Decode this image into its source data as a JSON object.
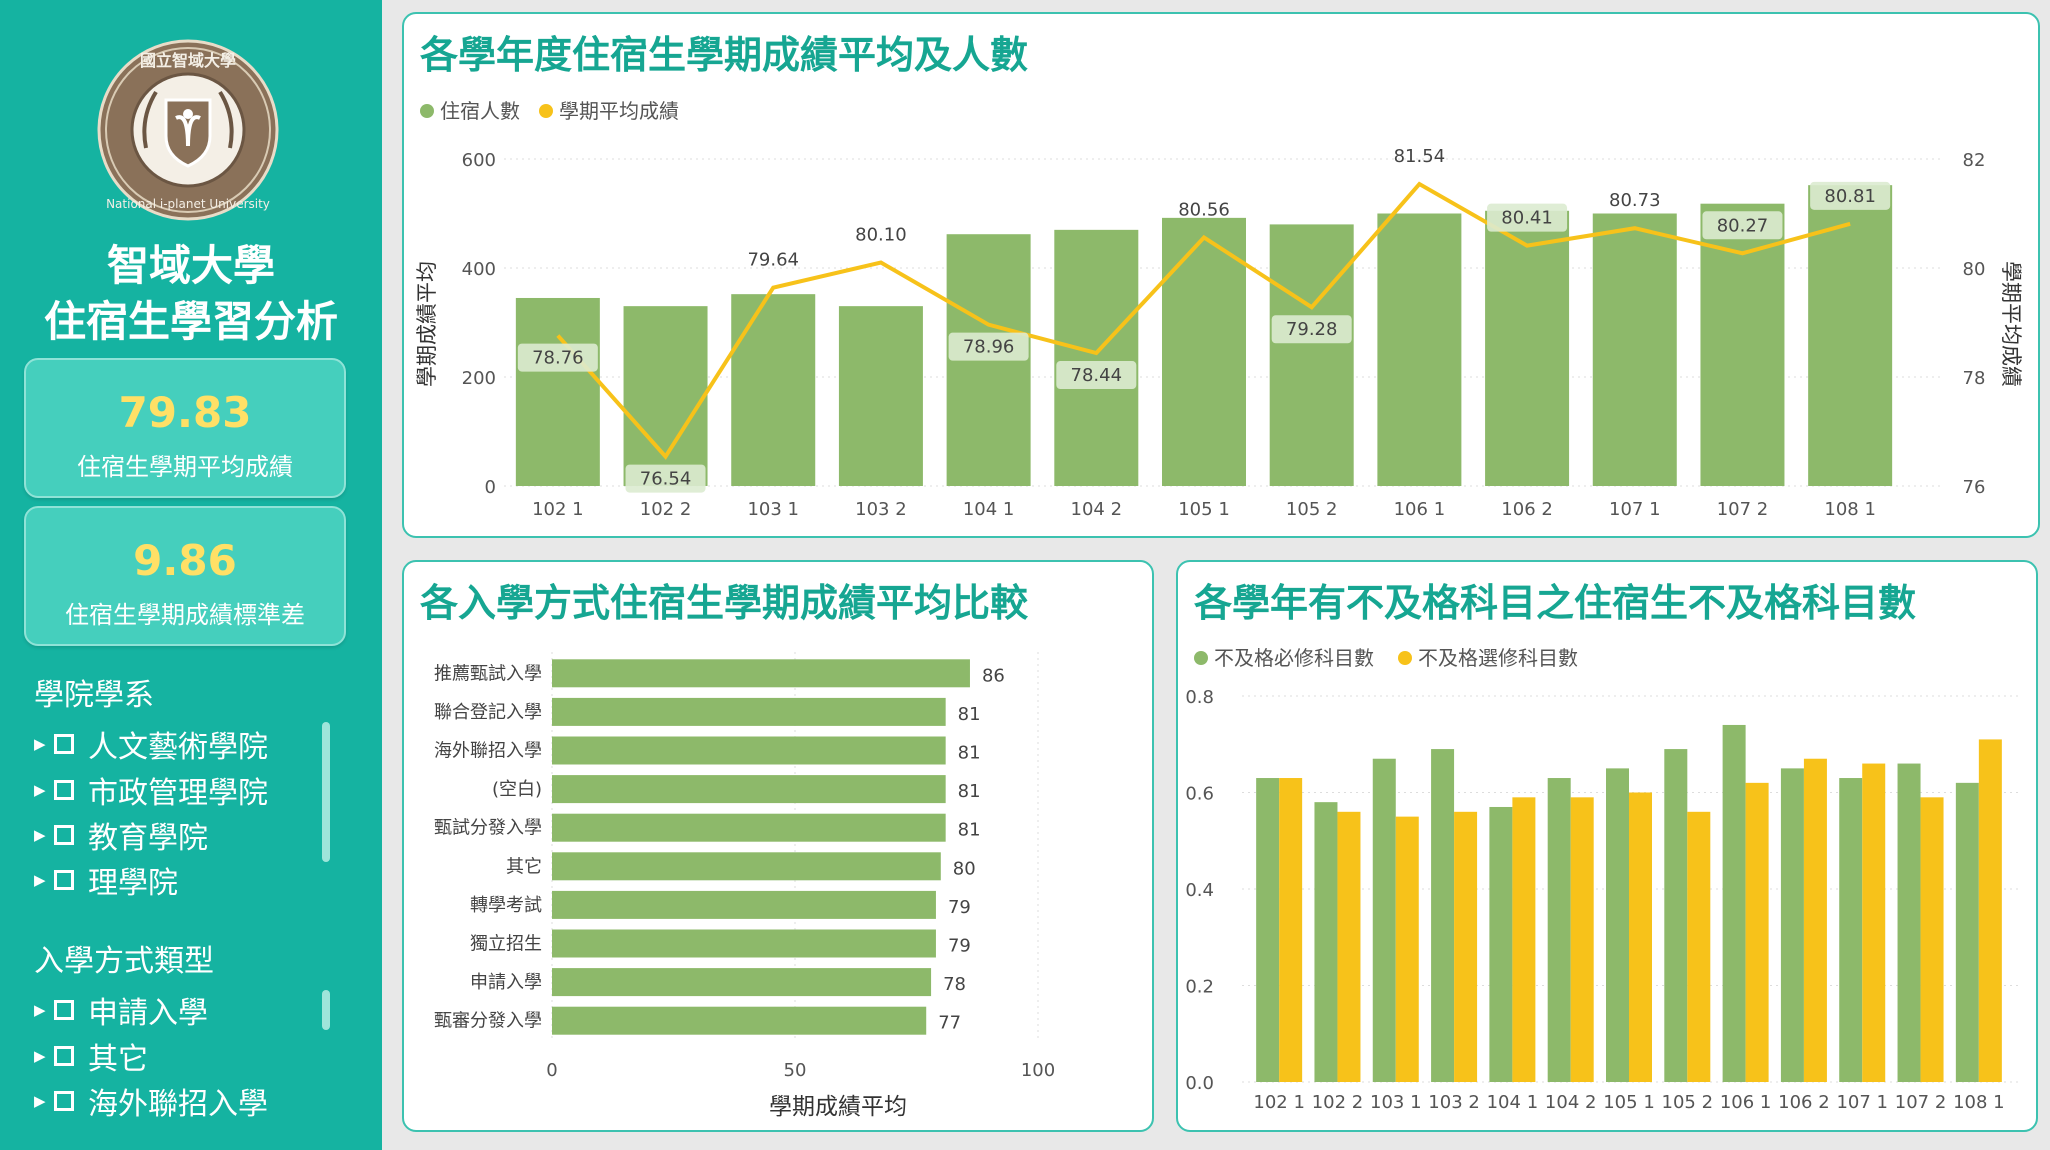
{
  "sidebar": {
    "logo_text": "國立智域大學 National i-planet University",
    "title_line1": "智域大學",
    "title_line2": "住宿生學習分析",
    "kpi1": {
      "value": "79.83",
      "label": "住宿生學期平均成績"
    },
    "kpi2": {
      "value": "9.86",
      "label": "住宿生學期成績標準差"
    },
    "slicer1": {
      "title": "學院學系",
      "items": [
        "人文藝術學院",
        "市政管理學院",
        "教育學院",
        "理學院"
      ]
    },
    "slicer2": {
      "title": "入學方式類型",
      "items": [
        "申請入學",
        "其它",
        "海外聯招入學"
      ]
    }
  },
  "colors": {
    "teal": "#15b3a1",
    "green": "#8db96a",
    "yellow": "#f7c21a",
    "title": "#16a692"
  },
  "chart_data": [
    {
      "type": "bar",
      "title": "各學年度住宿生學期成績平均及人數",
      "legend": [
        "住宿人數",
        "學期平均成績"
      ],
      "legend_position": "top-left",
      "categories": [
        "102 1",
        "102 2",
        "103 1",
        "103 2",
        "104 1",
        "104 2",
        "105 1",
        "105 2",
        "106 1",
        "106 2",
        "107 1",
        "107 2",
        "108 1"
      ],
      "series": [
        {
          "name": "住宿人數",
          "type": "bar",
          "axis": "left",
          "values": [
            345,
            330,
            352,
            330,
            462,
            470,
            492,
            480,
            500,
            505,
            500,
            518,
            552
          ]
        },
        {
          "name": "學期平均成績",
          "type": "line",
          "axis": "right",
          "values": [
            78.76,
            76.54,
            79.64,
            80.1,
            78.96,
            78.44,
            80.56,
            79.28,
            81.54,
            80.41,
            80.73,
            80.27,
            80.81
          ]
        }
      ],
      "data_labels": [
        "78.76",
        "76.54",
        "79.64",
        "80.10",
        "78.96",
        "78.44",
        "80.56",
        "79.28",
        "81.54",
        "80.41",
        "80.73",
        "80.27",
        "80.81"
      ],
      "ylabel": "學期成績平均",
      "y2label": "學期平均成績",
      "ylim": [
        0,
        600
      ],
      "y_ticks": [
        "600",
        "400",
        "200",
        "0"
      ],
      "y2lim": [
        76,
        82
      ],
      "y2_ticks": [
        "82",
        "80",
        "78",
        "76"
      ],
      "grid": true
    },
    {
      "type": "bar",
      "orientation": "horizontal",
      "title": "各入學方式住宿生學期成績平均比較",
      "categories": [
        "推薦甄試入學",
        "聯合登記入學",
        "海外聯招入學",
        "(空白)",
        "甄試分發入學",
        "其它",
        "轉學考試",
        "獨立招生",
        "申請入學",
        "甄審分發入學"
      ],
      "values": [
        86,
        81,
        81,
        81,
        81,
        80,
        79,
        79,
        78,
        77
      ],
      "value_labels": [
        "86",
        "81",
        "81",
        "81",
        "81",
        "80",
        "79",
        "79",
        "78",
        "77"
      ],
      "xlabel": "學期成績平均",
      "xlim": [
        0,
        100
      ],
      "x_ticks": [
        "0",
        "50",
        "100"
      ],
      "grid": true
    },
    {
      "type": "bar",
      "title": "各學年有不及格科目之住宿生不及格科目數",
      "legend": [
        "不及格必修科目數",
        "不及格選修科目數"
      ],
      "legend_position": "top-left",
      "categories": [
        "102 1",
        "102 2",
        "103 1",
        "103 2",
        "104 1",
        "104 2",
        "105 1",
        "105 2",
        "106 1",
        "106 2",
        "107 1",
        "107 2",
        "108 1"
      ],
      "series": [
        {
          "name": "不及格必修科目數",
          "values": [
            0.63,
            0.58,
            0.67,
            0.69,
            0.57,
            0.63,
            0.65,
            0.69,
            0.74,
            0.65,
            0.63,
            0.66,
            0.62
          ]
        },
        {
          "name": "不及格選修科目數",
          "values": [
            0.63,
            0.56,
            0.55,
            0.56,
            0.59,
            0.59,
            0.6,
            0.56,
            0.62,
            0.67,
            0.66,
            0.59,
            0.71
          ]
        }
      ],
      "ylim": [
        0,
        0.8
      ],
      "y_ticks": [
        "0.8",
        "0.6",
        "0.4",
        "0.2",
        "0.0"
      ],
      "grid": true
    }
  ]
}
